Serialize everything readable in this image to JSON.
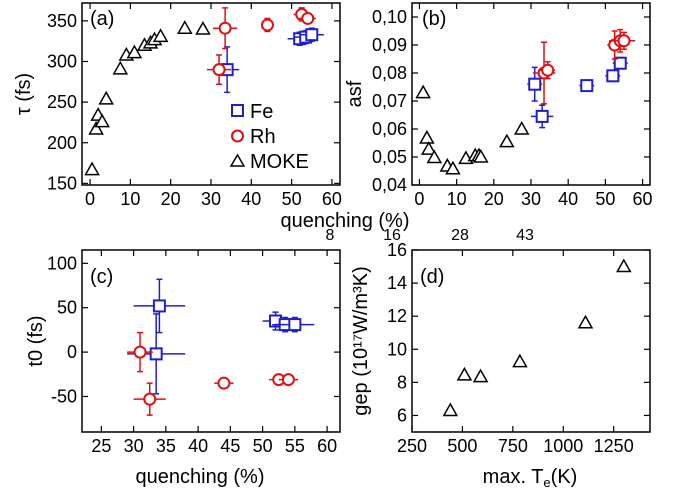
{
  "chart_data": [
    {
      "panel": "(a)",
      "type": "scatter",
      "xlabel": "",
      "ylabel": "τ (fs)",
      "xlim": [
        -2,
        62
      ],
      "ylim": [
        148,
        372
      ],
      "xticks": [
        0,
        10,
        20,
        30,
        40,
        50,
        60
      ],
      "yticks": [
        150,
        200,
        250,
        300,
        350
      ],
      "legend_position": "bottom-right",
      "series": [
        {
          "name": "Fe",
          "marker": "square",
          "color": "#1f1fd0",
          "points": [
            {
              "x": 34,
              "y": 290,
              "xerr": 3,
              "yerr": 28
            },
            {
              "x": 52,
              "y": 328,
              "xerr": 3,
              "yerr": 8
            },
            {
              "x": 53.5,
              "y": 330,
              "xerr": 3,
              "yerr": 8
            },
            {
              "x": 55,
              "y": 333,
              "xerr": 3,
              "yerr": 8
            }
          ]
        },
        {
          "name": "Rh",
          "marker": "circle",
          "color": "#e01010",
          "points": [
            {
              "x": 32,
              "y": 290,
              "xerr": 3,
              "yerr": 18
            },
            {
              "x": 33.5,
              "y": 341,
              "xerr": 3,
              "yerr": 25
            },
            {
              "x": 44,
              "y": 345,
              "xerr": 1.5,
              "yerr": 8
            },
            {
              "x": 52.5,
              "y": 358,
              "xerr": 2,
              "yerr": 8
            },
            {
              "x": 54,
              "y": 353,
              "xerr": 2,
              "yerr": 6
            }
          ]
        },
        {
          "name": "MOKE",
          "marker": "triangle",
          "color": "#000000",
          "points": [
            {
              "x": 0.5,
              "y": 167
            },
            {
              "x": 1.5,
              "y": 217
            },
            {
              "x": 2,
              "y": 234
            },
            {
              "x": 3,
              "y": 226
            },
            {
              "x": 4,
              "y": 254
            },
            {
              "x": 7.5,
              "y": 291
            },
            {
              "x": 9,
              "y": 308
            },
            {
              "x": 11,
              "y": 311
            },
            {
              "x": 13.5,
              "y": 320
            },
            {
              "x": 15,
              "y": 323
            },
            {
              "x": 16,
              "y": 327
            },
            {
              "x": 17.5,
              "y": 331
            },
            {
              "x": 23.5,
              "y": 341
            },
            {
              "x": 28,
              "y": 340
            }
          ]
        }
      ]
    },
    {
      "panel": "(b)",
      "type": "scatter",
      "xlabel": "quenching (%)",
      "ylabel": "asf",
      "xlim": [
        -2,
        62
      ],
      "ylim": [
        0.04,
        0.105
      ],
      "xticks": [
        0,
        10,
        20,
        30,
        40,
        50,
        60
      ],
      "yticks": [
        "0,04",
        "0,05",
        "0,06",
        "0,07",
        "0,08",
        "0,09",
        "0,10"
      ],
      "series": [
        {
          "name": "Fe",
          "marker": "square",
          "color": "#1f1fd0",
          "points": [
            {
              "x": 31,
              "y": 0.076,
              "xerr": 2,
              "yerr": 0.006
            },
            {
              "x": 33,
              "y": 0.0645,
              "xerr": 3,
              "yerr": 0.004
            },
            {
              "x": 45,
              "y": 0.0755,
              "xerr": 2,
              "yerr": 0.0015
            },
            {
              "x": 52,
              "y": 0.079,
              "xerr": 2,
              "yerr": 0.002
            },
            {
              "x": 54,
              "y": 0.0835,
              "xerr": 2,
              "yerr": 0.002
            }
          ]
        },
        {
          "name": "Rh",
          "marker": "circle",
          "color": "#e01010",
          "points": [
            {
              "x": 33.5,
              "y": 0.08,
              "xerr": 3,
              "yerr": 0.011
            },
            {
              "x": 34.5,
              "y": 0.081,
              "xerr": 2,
              "yerr": 0.003
            },
            {
              "x": 52.5,
              "y": 0.09,
              "xerr": 2,
              "yerr": 0.005
            },
            {
              "x": 54,
              "y": 0.0915,
              "xerr": 3,
              "yerr": 0.004
            },
            {
              "x": 55,
              "y": 0.0915,
              "xerr": 3,
              "yerr": 0.003
            }
          ]
        },
        {
          "name": "MOKE",
          "marker": "triangle",
          "color": "#000000",
          "points": [
            {
              "x": 1,
              "y": 0.073
            },
            {
              "x": 2,
              "y": 0.0568
            },
            {
              "x": 2.5,
              "y": 0.0528
            },
            {
              "x": 4,
              "y": 0.0498
            },
            {
              "x": 7.5,
              "y": 0.0468
            },
            {
              "x": 9,
              "y": 0.0458
            },
            {
              "x": 12.5,
              "y": 0.0495
            },
            {
              "x": 15,
              "y": 0.0505
            },
            {
              "x": 16,
              "y": 0.0505
            },
            {
              "x": 16.5,
              "y": 0.05
            },
            {
              "x": 23.5,
              "y": 0.0555
            },
            {
              "x": 27.5,
              "y": 0.06
            }
          ]
        }
      ]
    },
    {
      "panel": "(c)",
      "type": "scatter",
      "xlabel": "quenching (%)",
      "ylabel": "t0 (fs)",
      "xlim": [
        22,
        62
      ],
      "ylim": [
        -90,
        115
      ],
      "xticks": [
        25,
        30,
        35,
        40,
        45,
        50,
        55,
        60
      ],
      "yticks": [
        -50,
        0,
        50,
        100
      ],
      "series": [
        {
          "name": "Fe",
          "marker": "square",
          "color": "#1f1fd0",
          "points": [
            {
              "x": 34,
              "y": 52,
              "xerr": 4,
              "yerr": 30
            },
            {
              "x": 33.5,
              "y": -2,
              "xerr": 4.5,
              "yerr": 45
            },
            {
              "x": 52,
              "y": 35,
              "xerr": 2,
              "yerr": 10
            },
            {
              "x": 53.5,
              "y": 31,
              "xerr": 2,
              "yerr": 8
            },
            {
              "x": 55,
              "y": 31,
              "xerr": 3,
              "yerr": 8
            }
          ]
        },
        {
          "name": "Rh",
          "marker": "circle",
          "color": "#e01010",
          "points": [
            {
              "x": 31,
              "y": 0,
              "xerr": 2,
              "yerr": 22
            },
            {
              "x": 32.5,
              "y": -53,
              "xerr": 2.5,
              "yerr": 18
            },
            {
              "x": 44,
              "y": -35,
              "xerr": 1.5,
              "yerr": 5
            },
            {
              "x": 52.5,
              "y": -31,
              "xerr": 1.5,
              "yerr": 5
            },
            {
              "x": 54,
              "y": -31,
              "xerr": 1.5,
              "yerr": 5
            }
          ]
        }
      ]
    },
    {
      "panel": "(d)",
      "type": "scatter",
      "xlabel": "max. Te(K)",
      "ylabel": "gep (10¹⁷W/m³K)",
      "top_axis_labels": [
        "8",
        "16",
        "28",
        "43"
      ],
      "xlim": [
        250,
        1430
      ],
      "ylim": [
        5,
        16
      ],
      "xticks": [
        "250",
        "500",
        "750",
        "1000",
        "1250"
      ],
      "yticks": [
        6,
        8,
        10,
        12,
        14,
        16
      ],
      "series": [
        {
          "name": "MOKE",
          "marker": "triangle",
          "color": "#000000",
          "points": [
            {
              "x": 440,
              "y": 6.3
            },
            {
              "x": 510,
              "y": 8.45
            },
            {
              "x": 590,
              "y": 8.35
            },
            {
              "x": 785,
              "y": 9.25
            },
            {
              "x": 1110,
              "y": 11.6
            },
            {
              "x": 1300,
              "y": 15.0
            }
          ]
        }
      ]
    }
  ]
}
